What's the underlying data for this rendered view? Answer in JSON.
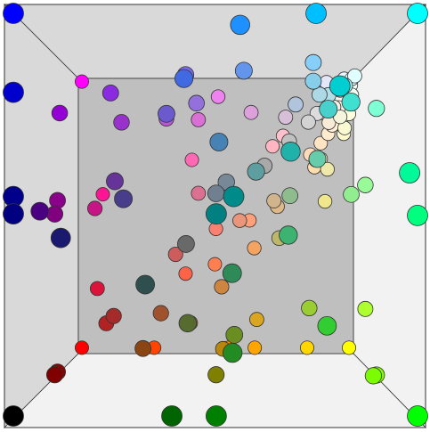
{
  "cube": {
    "points": [
      "#f0f8ff",
      "#faebd7",
      "#00ffff",
      "#7fffd4",
      "#f0ffff",
      "#f5f5dc",
      "#ffe4c4",
      "#000000",
      "#ffebcd",
      "#0000ff",
      "#8a2be2",
      "#a52a2a",
      "#deb887",
      "#5f9ea0",
      "#7fff00",
      "#d2691e",
      "#ff7f50",
      "#6495ed",
      "#fff8dc",
      "#dc143c",
      "#00008b",
      "#008b8b",
      "#b8860b",
      "#a9a9a9",
      "#006400",
      "#bdb76b",
      "#8b008b",
      "#556b2f",
      "#ff8c00",
      "#9932cc",
      "#8b0000",
      "#e9967a",
      "#8fbc8f",
      "#483d8b",
      "#2f4f4f",
      "#00ced1",
      "#9400d3",
      "#ff1493",
      "#00bfff",
      "#696969",
      "#1e90ff",
      "#b22222",
      "#fffaf0",
      "#228b22",
      "#dcdcdc",
      "#f8f8ff",
      "#ffd700",
      "#daa520",
      "#808080",
      "#008000",
      "#adff2f",
      "#f0fff0",
      "#ff69b4",
      "#cd5c5c",
      "#4b0082",
      "#fffff0",
      "#f0e68c",
      "#e6e6fa",
      "#fff0f5",
      "#7cfc00",
      "#fffacd",
      "#add8e6",
      "#f08080",
      "#e0ffff",
      "#fafad2",
      "#d3d3d3",
      "#90ee90",
      "#ffb6c1",
      "#ffa07a",
      "#20b2aa",
      "#87cefa",
      "#778899",
      "#b0c4de",
      "#ffffe0",
      "#00ff00",
      "#32cd32",
      "#faf0e6",
      "#ff00ff",
      "#800000",
      "#66cdaa",
      "#0000cd",
      "#ba55d3",
      "#9370db",
      "#3cb371",
      "#7b68ee",
      "#00fa9a",
      "#48d1cc",
      "#c71585",
      "#191970",
      "#f5fffa",
      "#ffe4e1",
      "#ffe4b5",
      "#ffdead",
      "#000080",
      "#fdf5e6",
      "#808000",
      "#6b8e23",
      "#ffa500",
      "#ff4500",
      "#da70d6",
      "#eee8aa",
      "#98fb98",
      "#afeeee",
      "#db7093",
      "#ffefd5",
      "#ffdab9",
      "#cd853f",
      "#ffc0cb",
      "#dda0dd",
      "#b0e0e6",
      "#800080",
      "#663399",
      "#ff0000",
      "#bc8f8f",
      "#4169e1",
      "#8b4513",
      "#fa8072",
      "#f4a460",
      "#2e8b57",
      "#fff5ee",
      "#a0522d",
      "#c0c0c0",
      "#87ceeb",
      "#6a5acd",
      "#708090",
      "#fffafa",
      "#00ff7f",
      "#4682b4",
      "#d2b48c",
      "#008080",
      "#d8bfd8",
      "#ff6347",
      "#40e0d0",
      "#ee82ee",
      "#f5deb3",
      "#ffffff",
      "#f5f5f5",
      "#ffff00",
      "#9acd32"
    ]
  }
}
